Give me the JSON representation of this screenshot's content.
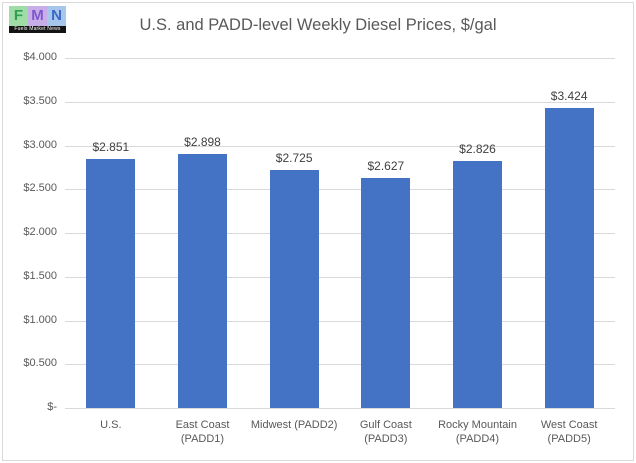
{
  "logo": {
    "letters": [
      "F",
      "M",
      "N"
    ],
    "caption": "Fuels Market News"
  },
  "title": "U.S. and PADD-level Weekly Diesel Prices, $/gal",
  "chart_data": {
    "type": "bar",
    "title": "U.S. and PADD-level Weekly Diesel Prices, $/gal",
    "categories": [
      "U.S.",
      "East Coast (PADD1)",
      "Midwest (PADD2)",
      "Gulf Coast (PADD3)",
      "Rocky Mountain (PADD4)",
      "West Coast (PADD5)"
    ],
    "values": [
      2.851,
      2.898,
      2.725,
      2.627,
      2.826,
      3.424
    ],
    "data_labels": [
      "$2.851",
      "$2.898",
      "$2.725",
      "$2.627",
      "$2.826",
      "$3.424"
    ],
    "xlabel": "",
    "ylabel": "",
    "ylim": [
      0,
      4
    ],
    "y_ticks": [
      {
        "value": 4.0,
        "label": "$4.000"
      },
      {
        "value": 3.5,
        "label": "$3.500"
      },
      {
        "value": 3.0,
        "label": "$3.000"
      },
      {
        "value": 2.5,
        "label": "$2.500"
      },
      {
        "value": 2.0,
        "label": "$2.000"
      },
      {
        "value": 1.5,
        "label": "$1.500"
      },
      {
        "value": 1.0,
        "label": "$1.000"
      },
      {
        "value": 0.5,
        "label": "$0.500"
      },
      {
        "value": 0.0,
        "label": "$-"
      }
    ],
    "grid": true,
    "legend": false,
    "bar_color": "#4472c4"
  },
  "colors": {
    "bar": "#4472c4",
    "gridline": "#d9d9d9",
    "border": "#d9d9d9",
    "title_text": "#595959",
    "axis_text": "#595959",
    "data_label_text": "#404040"
  }
}
